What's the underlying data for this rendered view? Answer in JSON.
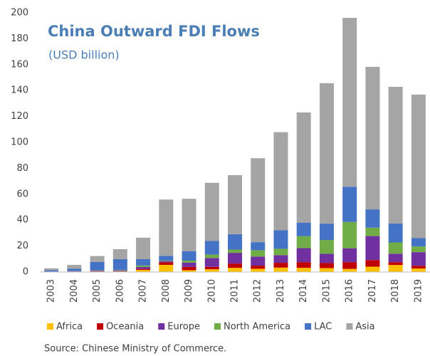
{
  "chart_data": {
    "type": "stacked_bar",
    "title": "China Outward FDI Flows",
    "subtitle": "(USD billion)",
    "source": "Source:  Chinese Ministry of Commerce.",
    "categories": [
      "2003",
      "2004",
      "2005",
      "2006",
      "2007",
      "2008",
      "2009",
      "2010",
      "2011",
      "2012",
      "2013",
      "2014",
      "2015",
      "2016",
      "2017",
      "2018",
      "2019"
    ],
    "series": [
      {
        "name": "Africa",
        "color": "#ffc000",
        "values": [
          0.1,
          0.3,
          0.4,
          0.5,
          1.6,
          5.5,
          1.4,
          2.1,
          3.2,
          2.5,
          3.4,
          3.2,
          3.0,
          2.4,
          4.1,
          5.4,
          2.7
        ]
      },
      {
        "name": "Oceania",
        "color": "#c00000",
        "values": [
          0.03,
          0.1,
          0.2,
          0.1,
          0.8,
          2.0,
          2.5,
          1.9,
          3.3,
          2.4,
          3.7,
          4.4,
          3.9,
          5.2,
          5.1,
          2.2,
          2.1
        ]
      },
      {
        "name": "Europe",
        "color": "#7030a0",
        "values": [
          0.15,
          0.2,
          0.4,
          0.6,
          1.5,
          0.9,
          3.4,
          6.8,
          8.3,
          7.0,
          5.9,
          10.8,
          7.1,
          10.7,
          18.5,
          6.5,
          10.5
        ]
      },
      {
        "name": "North America",
        "color": "#70ad47",
        "values": [
          0.06,
          0.1,
          0.3,
          0.3,
          1.1,
          0.4,
          1.5,
          2.6,
          2.5,
          4.9,
          4.9,
          9.2,
          10.7,
          20.3,
          6.5,
          8.7,
          4.4
        ]
      },
      {
        "name": "LAC",
        "color": "#4472c4",
        "values": [
          1.0,
          1.8,
          6.5,
          8.5,
          4.9,
          3.7,
          7.3,
          10.5,
          11.9,
          6.2,
          14.4,
          10.5,
          12.6,
          27.2,
          14.1,
          14.6,
          6.4
        ]
      },
      {
        "name": "Asia",
        "color": "#a5a5a5",
        "values": [
          1.5,
          3.0,
          4.5,
          7.6,
          16.6,
          43.4,
          40.4,
          44.9,
          45.5,
          64.8,
          75.6,
          85.0,
          108.4,
          130.3,
          110.0,
          105.5,
          110.8
        ]
      }
    ],
    "ylim": [
      0,
      200
    ],
    "yticks": [
      0,
      20,
      40,
      60,
      80,
      100,
      120,
      140,
      160,
      180,
      200
    ],
    "grid": false
  }
}
